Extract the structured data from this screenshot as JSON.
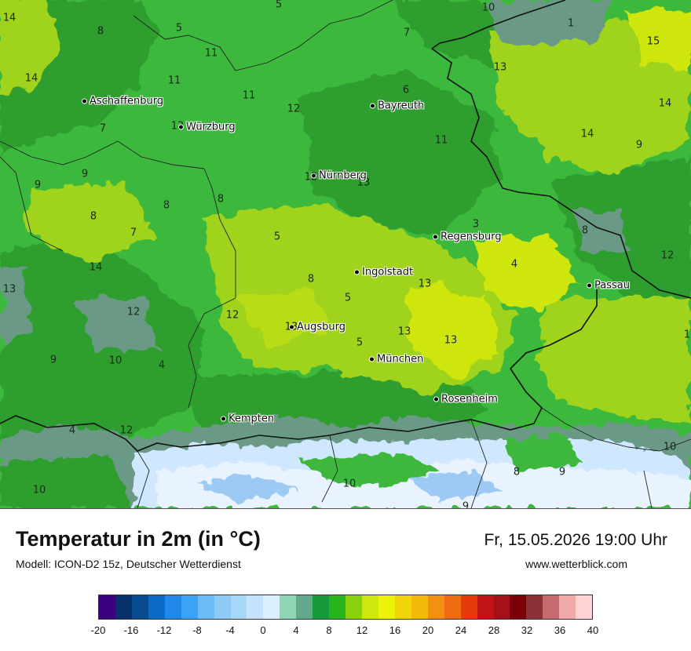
{
  "title": "Temperatur in 2m (in °C)",
  "subtitle": "Modell: ICON-D2 15z, Deutscher Wetterdienst",
  "datetime": "Fr, 15.05.2026 19:00 Uhr",
  "website": "www.wetterblick.com",
  "palette": {
    "cold_green": "#2e9e2e",
    "mid_green": "#3cb83c",
    "light_green": "#9fd31a",
    "yellow_green": "#cfe610",
    "mountain_gray": "#6a9a86",
    "snow_blue": "#cfe7ff",
    "snow_white": "#e8f3ff"
  },
  "cities": [
    {
      "name": "Aschaffenburg"
    },
    {
      "name": "Würzburg"
    },
    {
      "name": "Bayreuth"
    },
    {
      "name": "Nürnberg"
    },
    {
      "name": "Regensburg"
    },
    {
      "name": "Ingolstadt"
    },
    {
      "name": "Passau"
    },
    {
      "name": "Augsburg"
    },
    {
      "name": "München"
    },
    {
      "name": "Rosenheim"
    },
    {
      "name": "Kempten"
    }
  ],
  "map_values": [
    {
      "v": "14"
    },
    {
      "v": "5"
    },
    {
      "v": "8"
    },
    {
      "v": "5"
    },
    {
      "v": "10"
    },
    {
      "v": "7"
    },
    {
      "v": "1"
    },
    {
      "v": "15"
    },
    {
      "v": "11"
    },
    {
      "v": "14"
    },
    {
      "v": "11"
    },
    {
      "v": "13"
    },
    {
      "v": "11"
    },
    {
      "v": "6"
    },
    {
      "v": "12"
    },
    {
      "v": "14"
    },
    {
      "v": "7"
    },
    {
      "v": "12"
    },
    {
      "v": "14"
    },
    {
      "v": "11"
    },
    {
      "v": "9"
    },
    {
      "v": "9"
    },
    {
      "v": "9"
    },
    {
      "v": "12"
    },
    {
      "v": "8"
    },
    {
      "v": "8"
    },
    {
      "v": "13"
    },
    {
      "v": "8"
    },
    {
      "v": "7"
    },
    {
      "v": "3"
    },
    {
      "v": "8"
    },
    {
      "v": "5"
    },
    {
      "v": "12"
    },
    {
      "v": "14"
    },
    {
      "v": "4"
    },
    {
      "v": "13"
    },
    {
      "v": "8"
    },
    {
      "v": "13"
    },
    {
      "v": "5"
    },
    {
      "v": "12"
    },
    {
      "v": "12"
    },
    {
      "v": "1"
    },
    {
      "v": "13"
    },
    {
      "v": "13"
    },
    {
      "v": "13"
    },
    {
      "v": "5"
    },
    {
      "v": "9"
    },
    {
      "v": "10"
    },
    {
      "v": "4"
    },
    {
      "v": "12"
    },
    {
      "v": "4"
    },
    {
      "v": "10"
    },
    {
      "v": "8"
    },
    {
      "v": "9"
    },
    {
      "v": "10"
    },
    {
      "v": "10"
    },
    {
      "v": "9"
    }
  ],
  "legend": {
    "colors": [
      "#3a007f",
      "#08306b",
      "#084c8f",
      "#0a6ac4",
      "#1f88e8",
      "#3aa3f5",
      "#6cbcf7",
      "#8fcaf7",
      "#a9d7fa",
      "#c5e3fc",
      "#dcefff",
      "#8fd4b4",
      "#62a88a",
      "#169a3b",
      "#27b51c",
      "#8bd112",
      "#cde80d",
      "#eef20a",
      "#f2d40a",
      "#f2b80c",
      "#f29012",
      "#ef6c12",
      "#e43a0e",
      "#be1416",
      "#a4111a",
      "#7a000a",
      "#8c3136",
      "#c56b6e",
      "#f0a8a8",
      "#ffd3d3"
    ],
    "ticks": [
      "-20",
      "-16",
      "-12",
      "-8",
      "-4",
      "0",
      "4",
      "8",
      "12",
      "16",
      "20",
      "24",
      "28",
      "32",
      "36",
      "40"
    ]
  }
}
